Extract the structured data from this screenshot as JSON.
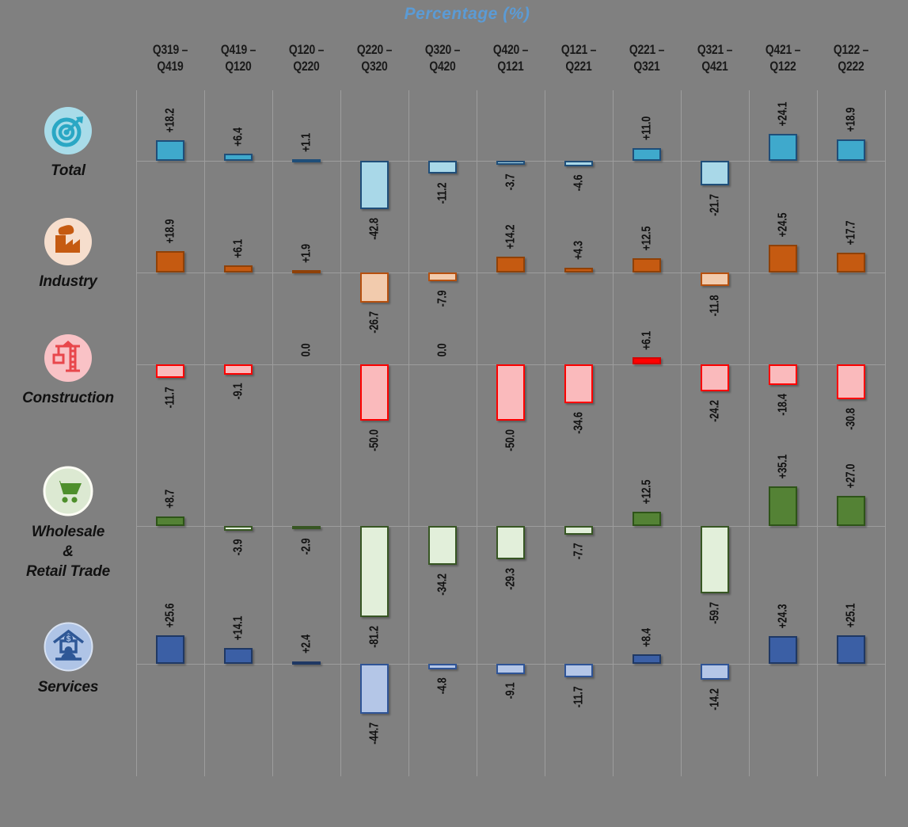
{
  "background_color": "#808080",
  "chart_data": {
    "type": "bar",
    "title": "Percentage (%)",
    "title_color": "#5B9BD5",
    "subtitle": "",
    "xlabel": "",
    "ylabel": "",
    "value_unit": "%",
    "legend": "none",
    "grid": "faint column separators and per-row zero baselines on gray background",
    "layout": "small-multiples: 5 sector rows x 11 quarter-pair columns, value labels rotated 90 degrees, positive bars above baseline, negative below",
    "categories": [
      "Q319 –\nQ419",
      "Q419 –\nQ120",
      "Q120 –\nQ220",
      "Q220 –\nQ320",
      "Q320 –\nQ420",
      "Q420 –\nQ121",
      "Q121 –\nQ221",
      "Q221 –\nQ321",
      "Q321 –\nQ421",
      "Q421 –\nQ122",
      "Q122 –\nQ222"
    ],
    "series": [
      {
        "name": "Total",
        "display_label": "Total",
        "icon": {
          "name": "target-icon",
          "bg": "#A9DCE9",
          "fg": "#2AA7C4"
        },
        "values": [
          18.2,
          6.4,
          1.1,
          -42.8,
          -11.2,
          -3.7,
          -4.6,
          11.0,
          -21.7,
          24.1,
          18.9
        ],
        "labels": [
          "+18.2",
          "+6.4",
          "+1.1",
          "-42.8",
          "-11.2",
          "-3.7",
          "-4.6",
          "+11.0",
          "-21.7",
          "+24.1",
          "+18.9"
        ],
        "pos_color": "#3FA9CC",
        "pos_border": "#1F4E79",
        "neg_color": "#A9D8E8",
        "neg_border": "#1F4E79"
      },
      {
        "name": "Industry",
        "display_label": "Industry",
        "icon": {
          "name": "factory-icon",
          "bg": "#F6DECD",
          "fg": "#C55A11"
        },
        "values": [
          18.9,
          6.1,
          1.9,
          -26.7,
          -7.9,
          14.2,
          4.3,
          12.5,
          -11.8,
          24.5,
          17.7
        ],
        "labels": [
          "+18.9",
          "+6.1",
          "+1.9",
          "-26.7",
          "-7.9",
          "+14.2",
          "+4.3",
          "+12.5",
          "-11.8",
          "+24.5",
          "+17.7"
        ],
        "pos_color": "#C55A11",
        "pos_border": "#8F4108",
        "neg_color": "#F2CBAD",
        "neg_border": "#B5500F"
      },
      {
        "name": "Construction",
        "display_label": "Construction",
        "icon": {
          "name": "crane-icon",
          "bg": "#F9C2C6",
          "fg": "#E8474C"
        },
        "values": [
          -11.7,
          -9.1,
          0.0,
          -50.0,
          0.0,
          -50.0,
          -34.6,
          6.1,
          -24.2,
          -18.4,
          -30.8
        ],
        "labels": [
          "-11.7",
          "-9.1",
          "0.0",
          "-50.0",
          "0.0",
          "-50.0",
          "-34.6",
          "+6.1",
          "-24.2",
          "-18.4",
          "-30.8"
        ],
        "pos_color": "#FF0000",
        "pos_border": "#D40000",
        "neg_color": "#FABABC",
        "neg_border": "#FF0000"
      },
      {
        "name": "Wholesale & Retail Trade",
        "display_label": "Wholesale\n&\nRetail Trade",
        "icon": {
          "name": "shopping-cart-icon",
          "bg": "#DCE9D2",
          "fg": "#4E8F2C"
        },
        "values": [
          8.7,
          -3.9,
          -2.9,
          -81.2,
          -34.2,
          -29.3,
          -7.7,
          12.5,
          -59.7,
          35.1,
          27.0
        ],
        "labels": [
          "+8.7",
          "-3.9",
          "-2.9",
          "-81.2",
          "-34.2",
          "-29.3",
          "-7.7",
          "+12.5",
          "-59.7",
          "+35.1",
          "+27.0"
        ],
        "pos_color": "#548235",
        "pos_border": "#2E5418",
        "neg_color": "#E2EFDA",
        "neg_border": "#375623"
      },
      {
        "name": "Services",
        "display_label": "Services",
        "icon": {
          "name": "home-office-icon",
          "bg": "#AFC4E6",
          "fg": "#2E5796"
        },
        "values": [
          25.6,
          14.1,
          2.4,
          -44.7,
          -4.8,
          -9.1,
          -11.7,
          8.4,
          -14.2,
          24.3,
          25.1
        ],
        "labels": [
          "+25.6",
          "+14.1",
          "+2.4",
          "-44.7",
          "-4.8",
          "-9.1",
          "-11.7",
          "+8.4",
          "-14.2",
          "+24.3",
          "+25.1"
        ],
        "pos_color": "#3B5FA5",
        "pos_border": "#1F3864",
        "neg_color": "#B4C6E7",
        "neg_border": "#2F5496"
      }
    ]
  }
}
